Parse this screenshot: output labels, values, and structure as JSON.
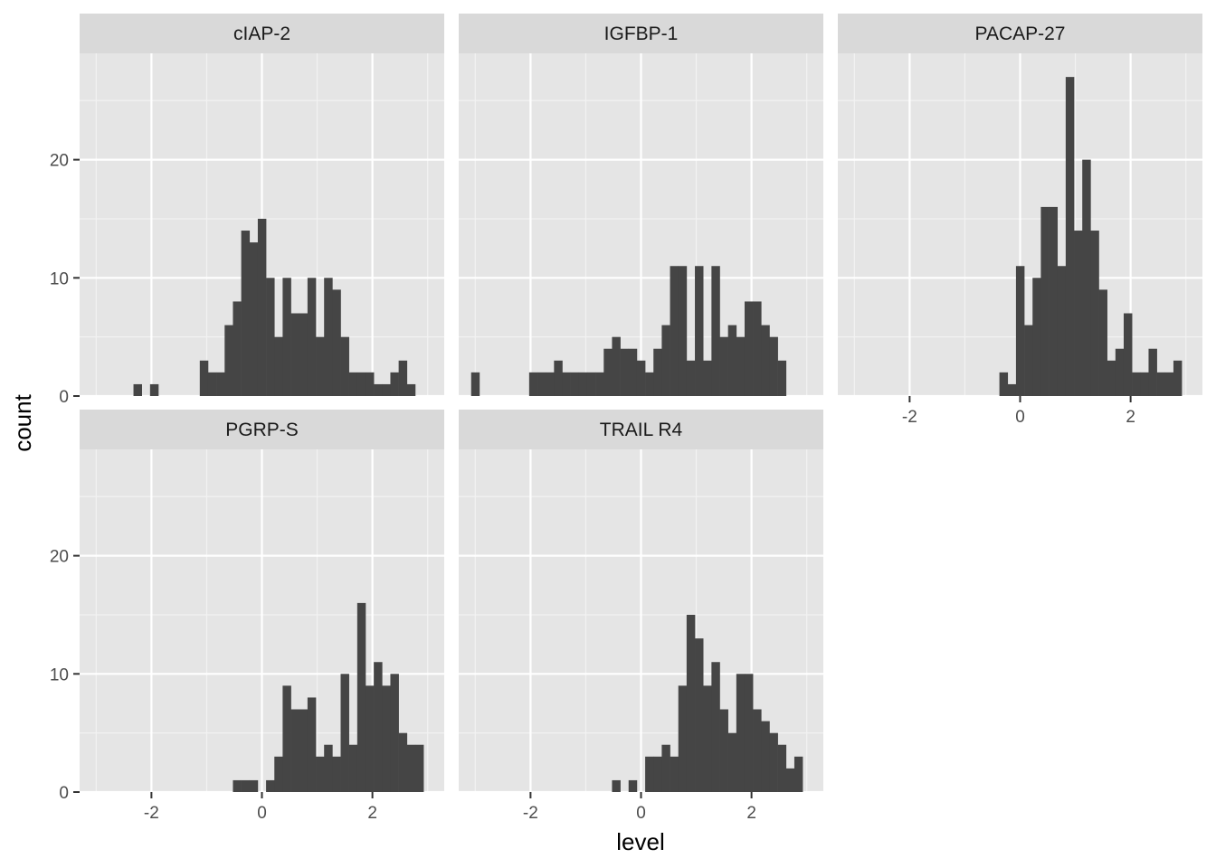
{
  "chart_data": {
    "type": "bar",
    "subtype": "faceted histogram",
    "xlabel": "level",
    "ylabel": "count",
    "xlim": [
      -3.3,
      3.3
    ],
    "ylim": [
      0,
      29
    ],
    "x_breaks": [
      -2,
      0,
      2
    ],
    "x_tick_labels": [
      "-2",
      "0",
      "2"
    ],
    "y_breaks": [
      0,
      10,
      20
    ],
    "y_tick_labels": [
      "0",
      "10",
      "20"
    ],
    "bins": 40,
    "bin_start": -3.075,
    "bin_width": 0.15,
    "grid": true,
    "colors": {
      "panel_background": "#e5e5e5",
      "strip_background": "#d9d9d9",
      "bar_fill": "#454545",
      "grid_major": "#ffffff",
      "grid_minor": "#f2f2f2"
    },
    "panels": [
      {
        "name": "cIAP-2",
        "counts": [
          0,
          0,
          0,
          0,
          0,
          1,
          0,
          1,
          0,
          0,
          0,
          0,
          0,
          3,
          2,
          2,
          6,
          8,
          14,
          13,
          15,
          10,
          5,
          10,
          7,
          7,
          10,
          5,
          10,
          9,
          5,
          2,
          2,
          2,
          1,
          1,
          2,
          3,
          1,
          0
        ]
      },
      {
        "name": "IGFBP-1",
        "counts": [
          2,
          0,
          0,
          0,
          0,
          0,
          0,
          2,
          2,
          2,
          3,
          2,
          2,
          2,
          2,
          2,
          4,
          5,
          4,
          4,
          3,
          2,
          4,
          6,
          11,
          11,
          3,
          11,
          3,
          11,
          5,
          6,
          5,
          8,
          8,
          6,
          5,
          3,
          0,
          0
        ]
      },
      {
        "name": "PACAP-27",
        "counts": [
          0,
          0,
          0,
          0,
          0,
          0,
          0,
          0,
          0,
          0,
          0,
          0,
          0,
          0,
          0,
          0,
          0,
          0,
          2,
          1,
          11,
          6,
          10,
          16,
          16,
          11,
          27,
          14,
          20,
          14,
          9,
          3,
          4,
          7,
          2,
          2,
          4,
          2,
          2,
          3
        ]
      },
      {
        "name": "PGRP-S",
        "counts": [
          0,
          0,
          0,
          0,
          0,
          0,
          0,
          0,
          0,
          0,
          0,
          0,
          0,
          0,
          0,
          0,
          0,
          1,
          1,
          1,
          0,
          1,
          3,
          9,
          7,
          7,
          8,
          3,
          4,
          3,
          10,
          4,
          16,
          9,
          11,
          9,
          10,
          5,
          4,
          4
        ]
      },
      {
        "name": "TRAIL R4",
        "counts": [
          0,
          0,
          0,
          0,
          0,
          0,
          0,
          0,
          0,
          0,
          0,
          0,
          0,
          0,
          0,
          0,
          0,
          1,
          0,
          1,
          0,
          3,
          3,
          4,
          3,
          9,
          15,
          13,
          9,
          11,
          7,
          5,
          10,
          10,
          7,
          6,
          5,
          4,
          2,
          3
        ]
      }
    ]
  }
}
